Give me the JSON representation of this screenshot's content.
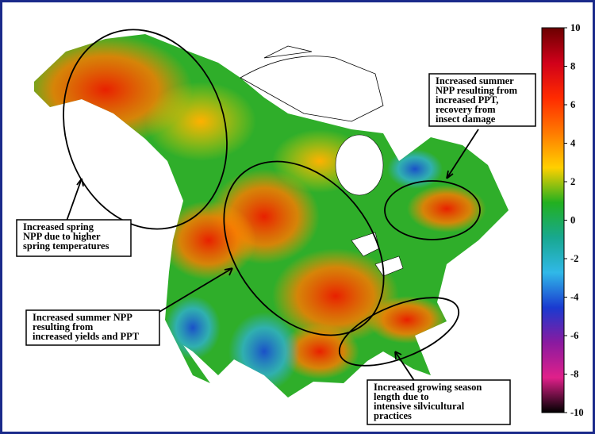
{
  "colorbar": {
    "lim": [
      -10,
      10
    ],
    "ticks": [
      10,
      8,
      6,
      4,
      2,
      0,
      -2,
      -4,
      -6,
      -8,
      -10
    ],
    "colors": [
      "#6b0000",
      "#d0001a",
      "#ff2a00",
      "#ff7a00",
      "#ffd000",
      "#22b020",
      "#18a890",
      "#30b8e8",
      "#1a3ad0",
      "#8a1aa0",
      "#e0208a",
      "#000000"
    ]
  },
  "annotations": [
    {
      "lines": [
        "Increased summer",
        "NPP resulting from",
        "increased PPT,",
        "recovery from",
        "insect damage"
      ]
    },
    {
      "lines": [
        "Increased spring",
        "NPP due to higher",
        "spring temperatures"
      ]
    },
    {
      "lines": [
        "Increased summer NPP",
        "resulting from",
        "increased yields and PPT"
      ]
    },
    {
      "lines": [
        "Increased growing season",
        "length due to",
        "intensive silvicultural",
        "practices"
      ]
    }
  ]
}
